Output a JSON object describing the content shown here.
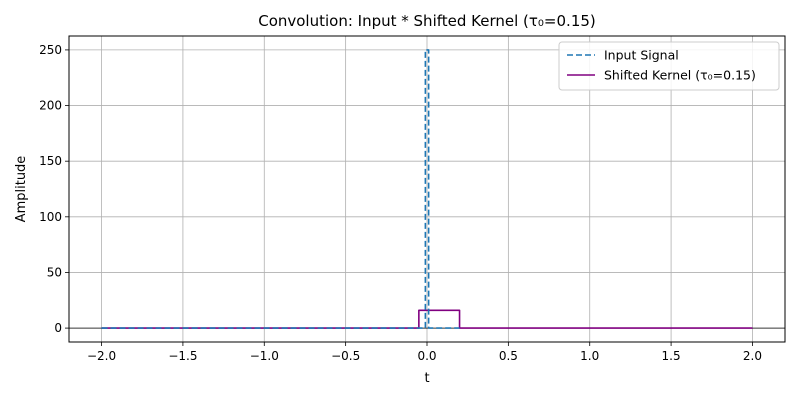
{
  "chart_data": {
    "type": "line",
    "title": "Convolution: Input * Shifted Kernel (τ₀=0.15)",
    "xlabel": "t",
    "ylabel": "Amplitude",
    "xlim": [
      -2.2,
      2.2
    ],
    "ylim": [
      -12.5,
      262.5
    ],
    "xticks": [
      -2.0,
      -1.5,
      -1.0,
      -0.5,
      0.0,
      0.5,
      1.0,
      1.5,
      2.0
    ],
    "xtick_labels": [
      "−2.0",
      "−1.5",
      "−1.0",
      "−0.5",
      "0.0",
      "0.5",
      "1.0",
      "1.5",
      "2.0"
    ],
    "yticks": [
      0,
      50,
      100,
      150,
      200,
      250
    ],
    "ytick_labels": [
      "0",
      "50",
      "100",
      "150",
      "200",
      "250"
    ],
    "grid": true,
    "legend_position": "top-right",
    "series": [
      {
        "name": "Input Signal",
        "color": "#1f77b4",
        "style": "dashed",
        "x": [
          -2.0,
          -0.01,
          -0.01,
          0.01,
          0.01,
          0.2
        ],
        "y": [
          0,
          0,
          250,
          250,
          0,
          0
        ]
      },
      {
        "name": "Shifted Kernel (τ₀=0.15)",
        "color": "#800080",
        "style": "solid",
        "x": [
          -2.0,
          -0.05,
          -0.05,
          0.2,
          0.2,
          2.0
        ],
        "y": [
          0,
          0,
          16,
          16,
          0,
          0
        ]
      }
    ]
  }
}
